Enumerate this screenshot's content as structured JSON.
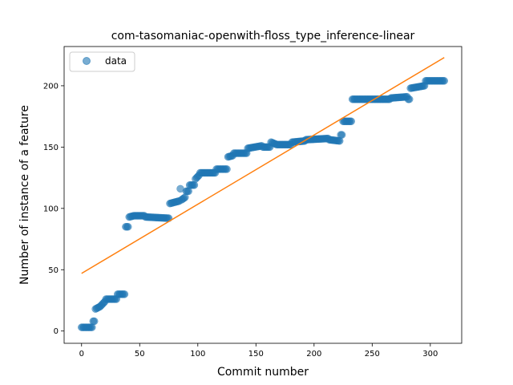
{
  "chart_data": {
    "type": "scatter",
    "title": "com-tasomaniac-openwith-floss_type_inference-linear",
    "xlabel": "Commit number",
    "ylabel": "Number of instance of a feature",
    "xlim": [
      -15,
      327
    ],
    "ylim": [
      -10,
      232
    ],
    "xticks": [
      0,
      50,
      100,
      150,
      200,
      250,
      300
    ],
    "yticks": [
      0,
      50,
      100,
      150,
      200
    ],
    "grid": false,
    "legend_position": "top-left",
    "colors": {
      "data": "#1f77b4",
      "fit": "#ff7f0e"
    },
    "series": [
      {
        "name": "data",
        "style": "markers",
        "segments": [
          [
            0,
            9,
            3,
            3
          ],
          [
            10,
            11,
            8,
            8
          ],
          [
            12,
            16,
            18,
            20
          ],
          [
            17,
            20,
            21,
            24
          ],
          [
            21,
            30,
            26,
            26
          ],
          [
            31,
            37,
            30,
            30
          ],
          [
            38,
            40,
            85,
            85
          ],
          [
            41,
            45,
            93,
            94
          ],
          [
            46,
            54,
            94,
            94
          ],
          [
            55,
            75,
            93,
            92
          ],
          [
            76,
            84,
            104,
            106
          ],
          [
            85,
            85,
            116,
            116
          ],
          [
            86,
            89,
            107,
            109
          ],
          [
            90,
            92,
            114,
            114
          ],
          [
            93,
            97,
            119,
            119
          ],
          [
            98,
            101,
            124,
            127
          ],
          [
            102,
            115,
            129,
            129
          ],
          [
            116,
            125,
            132,
            132
          ],
          [
            126,
            130,
            142,
            143
          ],
          [
            131,
            142,
            145,
            145
          ],
          [
            143,
            155,
            149,
            151
          ],
          [
            156,
            162,
            150,
            150
          ],
          [
            163,
            168,
            154,
            152
          ],
          [
            169,
            180,
            152,
            152
          ],
          [
            181,
            192,
            154,
            155
          ],
          [
            193,
            212,
            156,
            157
          ],
          [
            213,
            222,
            156,
            155
          ],
          [
            223,
            224,
            160,
            160
          ],
          [
            225,
            232,
            171,
            171
          ],
          [
            233,
            265,
            189,
            189
          ],
          [
            266,
            280,
            190,
            191
          ],
          [
            281,
            282,
            189,
            189
          ],
          [
            283,
            295,
            198,
            200
          ],
          [
            296,
            312,
            204,
            204
          ]
        ]
      },
      {
        "name": "",
        "style": "line",
        "x": [
          0,
          312
        ],
        "values": [
          47,
          223
        ]
      }
    ]
  }
}
